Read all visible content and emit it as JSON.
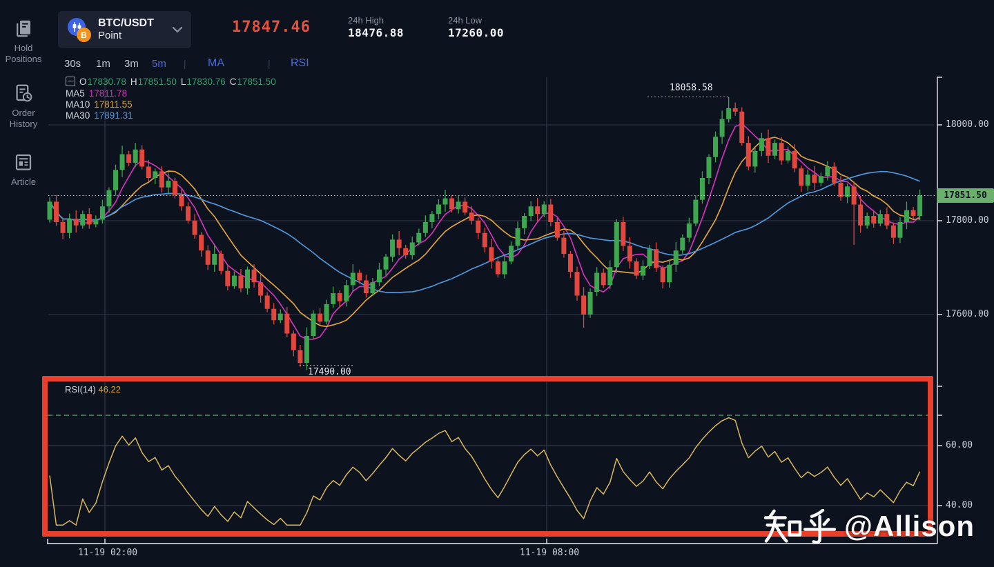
{
  "sidebar": {
    "items": [
      {
        "label": "Hold\nPositions",
        "icon": "hold-positions-icon"
      },
      {
        "label": "Order\nHistory",
        "icon": "order-history-icon"
      },
      {
        "label": "Article",
        "icon": "article-icon"
      }
    ]
  },
  "header": {
    "symbol": "BTC/USDT",
    "market_type": "Point",
    "coin_b": "B",
    "last_price": "17847.46",
    "high_label": "24h High",
    "high_value": "18476.88",
    "low_label": "24h Low",
    "low_value": "17260.00"
  },
  "toolbar": {
    "timeframes": [
      {
        "label": "30s",
        "active": false
      },
      {
        "label": "1m",
        "active": false
      },
      {
        "label": "3m",
        "active": false
      },
      {
        "label": "5m",
        "active": true
      }
    ],
    "separator": "|",
    "indicators": [
      {
        "label": "MA"
      },
      {
        "label": "RSI"
      }
    ]
  },
  "legend": {
    "ohlc": {
      "o_label": "O",
      "o": "17830.78",
      "h_label": "H",
      "h": "17851.50",
      "l_label": "L",
      "l": "17830.76",
      "c_label": "C",
      "c": "17851.50"
    },
    "ma": [
      {
        "label": "MA5",
        "value": "17811.78"
      },
      {
        "label": "MA10",
        "value": "17811.55"
      },
      {
        "label": "MA30",
        "value": "17891.31"
      }
    ]
  },
  "annotations": {
    "swing_high": "18058.58",
    "swing_low": "17490.00"
  },
  "price_axis": {
    "ticks": [
      {
        "label": "18000.00"
      },
      {
        "label": "17800.00"
      },
      {
        "label": "17600.00"
      }
    ],
    "last_badge": "17851.50"
  },
  "rsi_panel": {
    "title": "RSI(14)",
    "value": "46.22",
    "ticks": [
      {
        "label": "60.00"
      },
      {
        "label": "40.00"
      }
    ]
  },
  "time_axis": {
    "ticks": [
      {
        "label": "11-19 02:00"
      },
      {
        "label": "11-19 08:00"
      }
    ]
  },
  "watermark": {
    "site": "知乎",
    "handle": "@Allison"
  },
  "colors": {
    "up": "#3fa650",
    "down": "#e2473d",
    "ma5": "#d032b8",
    "ma10": "#dfa23f",
    "ma30": "#4f97d9",
    "rsi_line": "#d9b95c",
    "overbought_dash": "#3f9e63",
    "accent_blue": "#4a6cd9",
    "price_red": "#e2523f",
    "badge_green": "#6cb06d",
    "frame_red": "#e8402c"
  },
  "chart_data": {
    "type": "candlestick",
    "symbol": "BTC/USDT",
    "interval": "5m",
    "note": "open of candle i = close of i-1; closes approximate the plotted path",
    "first_open": 17800,
    "closes": [
      17838,
      17795,
      17772,
      17802,
      17788,
      17812,
      17790,
      17800,
      17828,
      17862,
      17905,
      17938,
      17920,
      17948,
      17912,
      17888,
      17902,
      17868,
      17882,
      17852,
      17828,
      17798,
      17768,
      17735,
      17705,
      17728,
      17692,
      17660,
      17682,
      17655,
      17695,
      17668,
      17640,
      17612,
      17588,
      17602,
      17560,
      17525,
      17498,
      17555,
      17602,
      17585,
      17622,
      17645,
      17628,
      17662,
      17688,
      17672,
      17645,
      17668,
      17695,
      17722,
      17758,
      17740,
      17725,
      17752,
      17772,
      17795,
      17812,
      17832,
      17845,
      17822,
      17838,
      17815,
      17798,
      17772,
      17742,
      17712,
      17685,
      17712,
      17745,
      17782,
      17808,
      17828,
      17812,
      17832,
      17795,
      17762,
      17728,
      17690,
      17640,
      17600,
      17648,
      17688,
      17662,
      17700,
      17795,
      17745,
      17712,
      17682,
      17702,
      17738,
      17698,
      17668,
      17705,
      17735,
      17762,
      17792,
      17842,
      17888,
      17932,
      17975,
      18012,
      18035,
      18028,
      17962,
      17912,
      17945,
      17972,
      17935,
      17962,
      17925,
      17945,
      17908,
      17872,
      17895,
      17878,
      17892,
      17912,
      17878,
      17848,
      17870,
      17832,
      17788,
      17808,
      17792,
      17812,
      17788,
      17762,
      17795,
      17820,
      17808,
      17851.5
    ],
    "wick_overrides": {
      "13": {
        "high": 17962
      },
      "38": {
        "low": 17490
      },
      "81": {
        "low": 17572
      },
      "103": {
        "high": 18058.58
      },
      "122": {
        "low": 17747
      }
    },
    "swing_high": 18058.58,
    "swing_low": 17490.0,
    "last_price": 17851.5,
    "moving_averages": [
      {
        "name": "MA5",
        "period": 5,
        "color": "#d032b8"
      },
      {
        "name": "MA10",
        "period": 10,
        "color": "#dfa23f"
      },
      {
        "name": "MA30",
        "period": 30,
        "color": "#4f97d9"
      }
    ],
    "main_ylim": [
      17475,
      18100
    ],
    "price_gridlines": [
      18000,
      17800,
      17600
    ],
    "rsi": {
      "period": 14,
      "current": 46.22,
      "overbought_level": 70,
      "ylim": [
        31,
        81
      ],
      "gridlines": [
        60,
        40
      ]
    },
    "time_ticks": [
      "11-19 02:00",
      "11-19 08:00"
    ],
    "grid": true,
    "legend_position": "top-left"
  }
}
